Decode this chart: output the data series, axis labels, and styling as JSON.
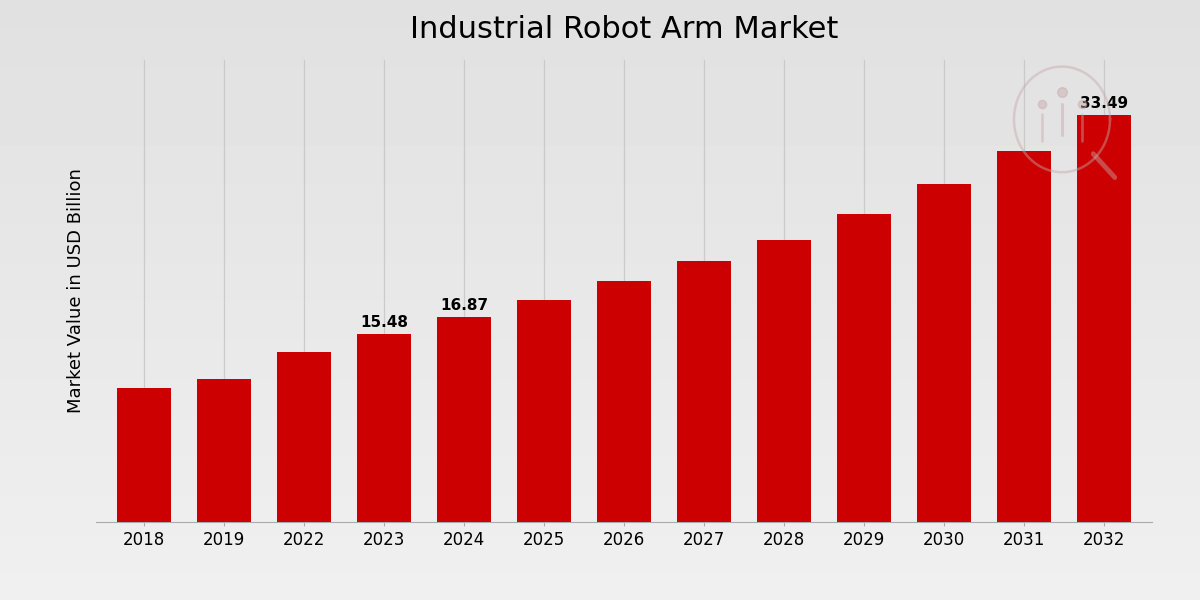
{
  "title": "Industrial Robot Arm Market",
  "ylabel": "Market Value in USD Billion",
  "categories": [
    "2018",
    "2019",
    "2022",
    "2023",
    "2024",
    "2025",
    "2026",
    "2027",
    "2028",
    "2029",
    "2030",
    "2031",
    "2032"
  ],
  "values": [
    11.0,
    11.8,
    14.0,
    15.48,
    16.87,
    18.3,
    19.8,
    21.5,
    23.2,
    25.3,
    27.8,
    30.5,
    33.49
  ],
  "bar_color": "#CC0000",
  "background_color_top": "#DEDEDE",
  "background_color_bottom": "#E8E8E8",
  "grid_color": "#C8C8C8",
  "title_fontsize": 22,
  "label_fontsize": 12,
  "ylabel_fontsize": 13,
  "annotated_bars": {
    "2023": "15.48",
    "2024": "16.87",
    "2032": "33.49"
  },
  "ylim": [
    0,
    38
  ],
  "bottom_strip_color": "#CC0000"
}
